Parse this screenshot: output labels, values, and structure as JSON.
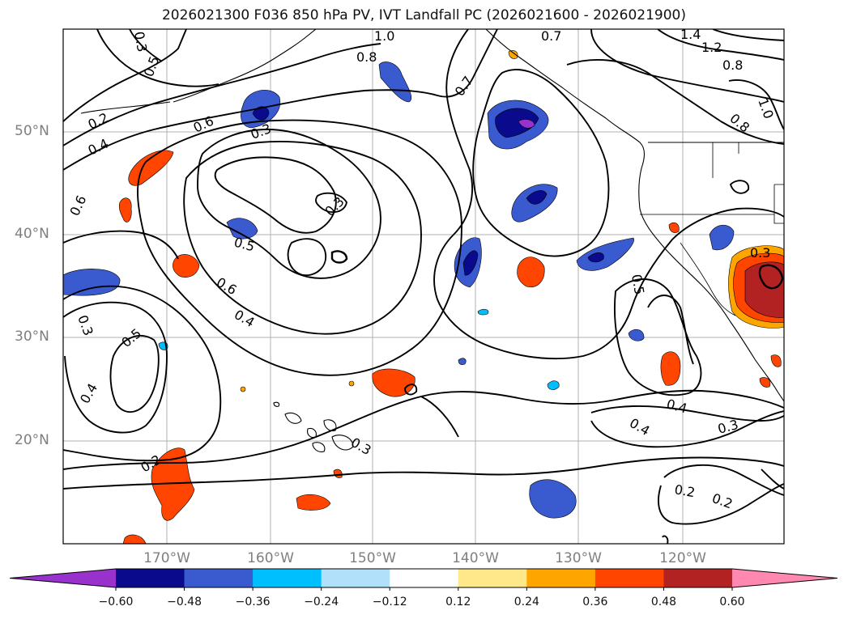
{
  "title": "2026021300 F036 850 hPa PV, IVT Landfall PC (2026021600 - 2026021900)",
  "latitude_labels": [
    "50°N",
    "40°N",
    "30°N",
    "20°N"
  ],
  "longitude_labels": [
    "170°W",
    "160°W",
    "150°W",
    "140°W",
    "130°W",
    "120°W"
  ],
  "contour_labels": [
    "1.0",
    "0.8",
    "0.7",
    "0.7",
    "1.4",
    "1.2",
    "0.8",
    "1.0",
    "0.8",
    "0.3",
    "0.5",
    "0.2",
    "0.4",
    "0.6",
    "0.3",
    "0.3",
    "0.6",
    "0.5",
    "0.6",
    "0.4",
    "0.3",
    "0.5",
    "0.3",
    "0.4",
    "0.2",
    "0.3",
    "0.4",
    "0.4",
    "0.3",
    "0.5",
    "0.2",
    "0.2"
  ],
  "colorbar": {
    "ticks": [
      "−0.60",
      "−0.48",
      "−0.36",
      "−0.24",
      "−0.12",
      "0.12",
      "0.24",
      "0.36",
      "0.48",
      "0.60"
    ],
    "colors": [
      "#9932cc",
      "#0a0a8c",
      "#3a5ad0",
      "#00bfff",
      "#b0e0fa",
      "#ffffff",
      "#ffe88a",
      "#ffa500",
      "#ff4500",
      "#b22222",
      "#ff88b0"
    ]
  }
}
